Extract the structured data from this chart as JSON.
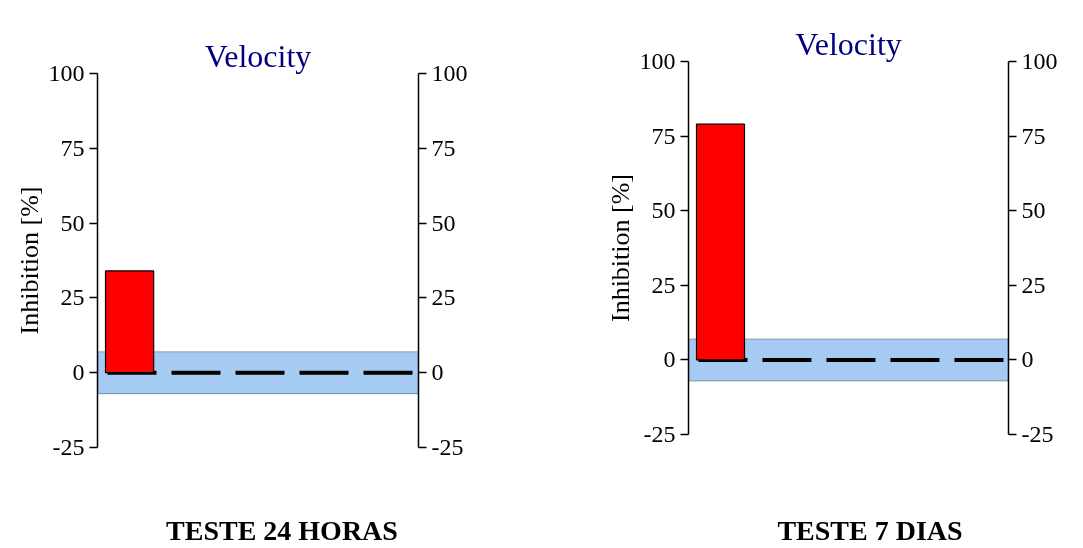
{
  "chart_data": [
    {
      "type": "bar",
      "title": "Velocity",
      "ylabel": "Inhibition [%]",
      "categories": [
        null
      ],
      "values": [
        34
      ],
      "color": "#ff0000",
      "ylim": [
        -25,
        100
      ],
      "yticks": [
        -25,
        0,
        25,
        50,
        75,
        100
      ],
      "y2lim": [
        -25,
        100
      ],
      "y2ticks": [
        -25,
        0,
        25,
        50,
        75,
        100
      ],
      "bands": [
        {
          "axis": "y",
          "from": -7,
          "to": 7,
          "color": "#a6cbf3"
        }
      ],
      "ref_lines": [
        {
          "axis": "y",
          "value": 0,
          "color": "#000000",
          "line_style": "dashed"
        }
      ],
      "grid": false,
      "tick_labels": "y",
      "annotations": [
        "TESTE 24 HORAS"
      ]
    },
    {
      "type": "bar",
      "title": "Velocity",
      "ylabel": "Inhibition [%]",
      "categories": [
        null
      ],
      "values": [
        79
      ],
      "color": "#ff0000",
      "ylim": [
        -25,
        100
      ],
      "yticks": [
        -25,
        0,
        25,
        50,
        75,
        100
      ],
      "y2lim": [
        -25,
        100
      ],
      "y2ticks": [
        -25,
        0,
        25,
        50,
        75,
        100
      ],
      "bands": [
        {
          "axis": "y",
          "from": -7,
          "to": 7,
          "color": "#a6cbf3"
        }
      ],
      "ref_lines": [
        {
          "axis": "y",
          "value": 0,
          "color": "#000000",
          "line_style": "dashed"
        }
      ],
      "grid": false,
      "tick_labels": "y",
      "annotations": [
        "TESTE 7 DIAS"
      ]
    }
  ]
}
